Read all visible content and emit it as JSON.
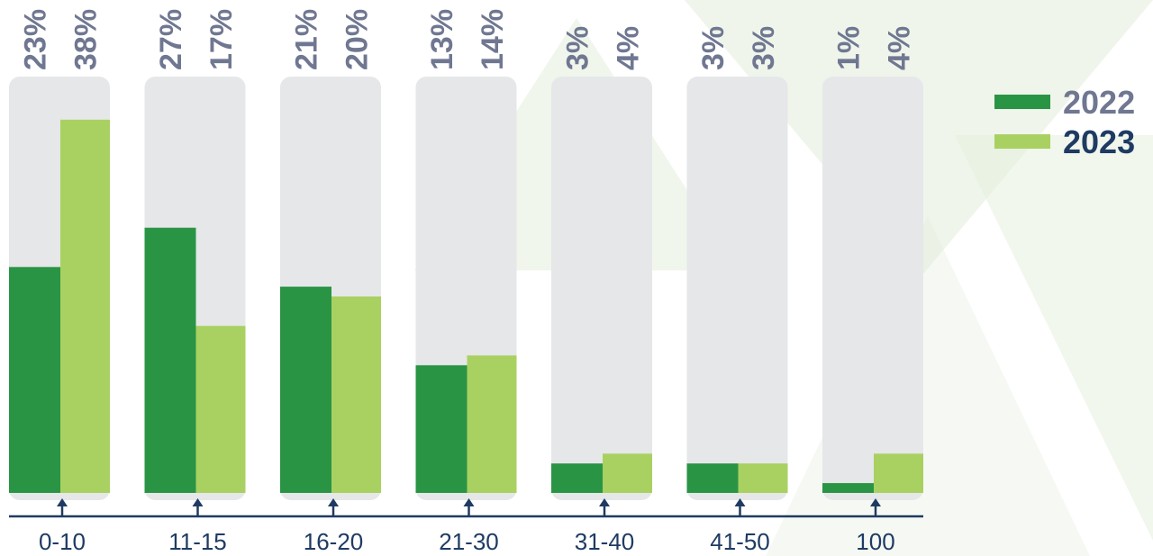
{
  "chart_data": {
    "type": "bar",
    "categories": [
      "0-10",
      "11-15",
      "16-20",
      "21-30",
      "31-40",
      "41-50",
      "100"
    ],
    "series": [
      {
        "name": "2022",
        "values": [
          23,
          27,
          21,
          13,
          3,
          3,
          1
        ],
        "labels": [
          "23%",
          "27%",
          "21%",
          "13%",
          "3%",
          "3%",
          "1%"
        ]
      },
      {
        "name": "2023",
        "values": [
          38,
          17,
          20,
          14,
          4,
          3,
          4
        ],
        "labels": [
          "38%",
          "17%",
          "20%",
          "14%",
          "4%",
          "3%",
          "4%"
        ]
      }
    ],
    "ylim": [
      0,
      40
    ],
    "title": "",
    "xlabel": "",
    "ylabel": "",
    "legend_position": "top-right",
    "colors": {
      "series_2022": "#2a9445",
      "series_2023": "#a9d161",
      "track": "#e6e7e9",
      "value_label": "#6f7791",
      "axis": "#1f3b63",
      "legend_2022_text": "#6f7791",
      "legend_2023_text": "#1f3b63",
      "background_shapes": "#e4efdc"
    }
  }
}
